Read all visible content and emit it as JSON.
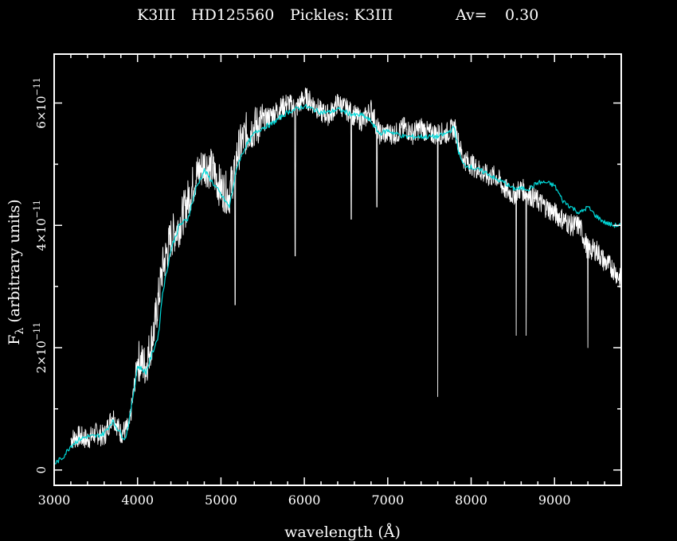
{
  "title": {
    "spectral_type": "K3III",
    "star": "HD125560",
    "pickles_label": "Pickles: K3III",
    "av_label": "Av=",
    "av_value": "0.30"
  },
  "chart_data": {
    "type": "line",
    "xlabel": "wavelength (Å)",
    "ylabel": "F_λ (arbitrary units)",
    "xlim": [
      3000,
      9800
    ],
    "ylim": [
      -2.5e-12,
      6.8e-11
    ],
    "x_ticks": [
      3000,
      4000,
      5000,
      6000,
      7000,
      8000,
      9000
    ],
    "y_ticks": [
      {
        "value": 0,
        "mant": "0",
        "exp": ""
      },
      {
        "value": 2e-11,
        "mant": "2×10",
        "exp": "−11"
      },
      {
        "value": 4e-11,
        "mant": "4×10",
        "exp": "−11"
      },
      {
        "value": 6e-11,
        "mant": "6×10",
        "exp": "−11"
      }
    ],
    "series": [
      {
        "role": "observed",
        "color": "#ffffff",
        "x": [
          3200,
          3300,
          3400,
          3500,
          3600,
          3700,
          3800,
          3900,
          4000,
          4100,
          4200,
          4300,
          4400,
          4500,
          4600,
          4700,
          4800,
          4900,
          5000,
          5100,
          5200,
          5300,
          5400,
          5500,
          5600,
          5700,
          5800,
          5900,
          6000,
          6100,
          6200,
          6300,
          6400,
          6500,
          6600,
          6700,
          6800,
          6900,
          7000,
          7100,
          7200,
          7300,
          7400,
          7500,
          7600,
          7700,
          7800,
          7900,
          8000,
          8100,
          8200,
          8300,
          8400,
          8500,
          8600,
          8700,
          8800,
          8900,
          9000,
          9100,
          9200,
          9300,
          9400,
          9500,
          9600,
          9700,
          9800
        ],
        "y": [
          5e-12,
          5.5e-12,
          5e-12,
          6e-12,
          5.5e-12,
          9e-12,
          6e-12,
          7e-12,
          1.8e-11,
          1.7e-11,
          2.3e-11,
          3.3e-11,
          3.8e-11,
          4e-11,
          4.4e-11,
          4.8e-11,
          5e-11,
          4.9e-11,
          4.6e-11,
          4.5e-11,
          5.2e-11,
          5.5e-11,
          5.6e-11,
          5.7e-11,
          5.8e-11,
          5.9e-11,
          6e-11,
          5.9e-11,
          6.1e-11,
          6e-11,
          5.85e-11,
          5.8e-11,
          6e-11,
          5.9e-11,
          5.8e-11,
          5.7e-11,
          5.9e-11,
          5.5e-11,
          5.5e-11,
          5.5e-11,
          5.6e-11,
          5.5e-11,
          5.6e-11,
          5.5e-11,
          5.5e-11,
          5.5e-11,
          5.6e-11,
          5.1e-11,
          5e-11,
          4.9e-11,
          4.8e-11,
          4.8e-11,
          4.6e-11,
          4.5e-11,
          4.6e-11,
          4.5e-11,
          4.4e-11,
          4.3e-11,
          4.2e-11,
          4.1e-11,
          4e-11,
          4e-11,
          3.6e-11,
          3.6e-11,
          3.4e-11,
          3.3e-11,
          3.1e-11
        ],
        "absorption_lines": [
          {
            "x": 5170,
            "y": 2.7e-11
          },
          {
            "x": 5890,
            "y": 3.5e-11
          },
          {
            "x": 6563,
            "y": 4.1e-11
          },
          {
            "x": 6870,
            "y": 4.3e-11
          },
          {
            "x": 7600,
            "y": 1.2e-11
          },
          {
            "x": 8500,
            "y": 4.5e-11
          },
          {
            "x": 8540,
            "y": 2.2e-11
          },
          {
            "x": 8660,
            "y": 2.2e-11
          },
          {
            "x": 9400,
            "y": 2e-11
          }
        ]
      },
      {
        "role": "template",
        "color": "#00d8d8",
        "x": [
          3000,
          3100,
          3200,
          3300,
          3400,
          3500,
          3600,
          3700,
          3800,
          3850,
          3900,
          4000,
          4100,
          4200,
          4250,
          4300,
          4400,
          4500,
          4600,
          4700,
          4800,
          4900,
          5000,
          5100,
          5200,
          5300,
          5400,
          5500,
          5600,
          5700,
          5800,
          5900,
          6000,
          6100,
          6200,
          6300,
          6400,
          6500,
          6600,
          6700,
          6800,
          6900,
          7000,
          7100,
          7200,
          7300,
          7400,
          7500,
          7600,
          7700,
          7800,
          7850,
          7900,
          8000,
          8100,
          8200,
          8300,
          8400,
          8500,
          8600,
          8700,
          8800,
          8900,
          9000,
          9100,
          9200,
          9300,
          9400,
          9500,
          9600,
          9700,
          9800
        ],
        "y": [
          1e-12,
          2e-12,
          4e-12,
          5e-12,
          5.5e-12,
          5.5e-12,
          6e-12,
          8e-12,
          6e-12,
          5e-12,
          8e-12,
          1.7e-11,
          1.6e-11,
          2e-11,
          2.2e-11,
          2.9e-11,
          3.6e-11,
          4e-11,
          4.1e-11,
          4.6e-11,
          4.9e-11,
          4.7e-11,
          4.5e-11,
          4.3e-11,
          5e-11,
          5.3e-11,
          5.5e-11,
          5.6e-11,
          5.65e-11,
          5.75e-11,
          5.85e-11,
          5.9e-11,
          5.95e-11,
          5.9e-11,
          5.85e-11,
          5.85e-11,
          5.9e-11,
          5.85e-11,
          5.8e-11,
          5.8e-11,
          5.7e-11,
          5.5e-11,
          5.55e-11,
          5.5e-11,
          5.45e-11,
          5.45e-11,
          5.45e-11,
          5.45e-11,
          5.45e-11,
          5.5e-11,
          5.6e-11,
          5.2e-11,
          5e-11,
          4.95e-11,
          4.9e-11,
          4.85e-11,
          4.75e-11,
          4.7e-11,
          4.6e-11,
          4.6e-11,
          4.6e-11,
          4.7e-11,
          4.7e-11,
          4.65e-11,
          4.4e-11,
          4.3e-11,
          4.2e-11,
          4.3e-11,
          4.15e-11,
          4.05e-11,
          4e-11,
          4e-11
        ]
      }
    ]
  }
}
